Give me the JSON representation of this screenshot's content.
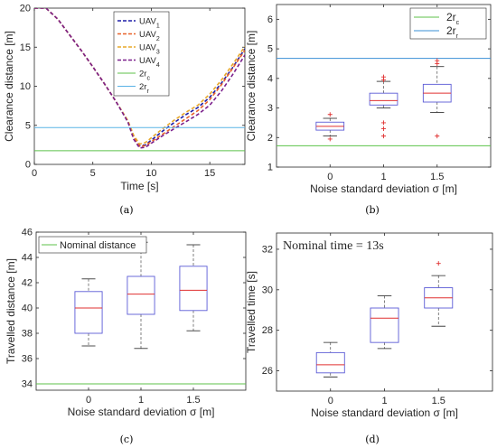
{
  "figure": {
    "panels": [
      {
        "caption": "(a)"
      },
      {
        "caption": "(b)"
      },
      {
        "caption": "(c)"
      },
      {
        "caption": "(d)"
      }
    ]
  },
  "chart_data": [
    {
      "panel": "(a)",
      "type": "line",
      "xlabel": "Time [s]",
      "ylabel": "Clearance distance [m]",
      "xlim": [
        0,
        18
      ],
      "ylim": [
        0,
        20
      ],
      "xticks": [
        0,
        5,
        10,
        15
      ],
      "yticks": [
        0,
        5,
        10,
        15,
        20
      ],
      "legend_position": "top-right",
      "series": [
        {
          "name": "UAV",
          "sub": "1",
          "style": "dashed",
          "color": "#1f1fa8",
          "x": [
            0,
            1,
            2,
            3,
            4,
            5,
            6,
            7,
            8,
            8.5,
            9,
            9.5,
            10,
            11,
            12,
            13,
            14,
            15,
            16,
            17,
            18
          ],
          "y": [
            20,
            20,
            18.6,
            16.6,
            14.6,
            12.5,
            10.3,
            8,
            5.5,
            3.5,
            2.4,
            2.5,
            3.1,
            4.3,
            5.4,
            6.4,
            7.3,
            8.6,
            10.4,
            12.5,
            14.8
          ]
        },
        {
          "name": "UAV",
          "sub": "2",
          "style": "dashed",
          "color": "#e8622a",
          "x": [
            0,
            1,
            2,
            3,
            4,
            5,
            6,
            7,
            8,
            8.5,
            9,
            9.5,
            10,
            11,
            12,
            13,
            14,
            15,
            16,
            17,
            18
          ],
          "y": [
            20,
            20,
            18.6,
            16.6,
            14.6,
            12.5,
            10.3,
            8,
            5.5,
            3.4,
            2.3,
            2.4,
            2.9,
            3.9,
            4.9,
            5.9,
            6.9,
            8.3,
            10.2,
            12.4,
            14.6
          ]
        },
        {
          "name": "UAV",
          "sub": "3",
          "style": "dashed",
          "color": "#e8a82a",
          "x": [
            0,
            1,
            2,
            3,
            4,
            5,
            6,
            7,
            8,
            8.5,
            9,
            9.5,
            10,
            11,
            12,
            13,
            14,
            15,
            16,
            17,
            18
          ],
          "y": [
            20,
            20,
            18.6,
            16.6,
            14.6,
            12.5,
            10.3,
            8,
            5.6,
            3.7,
            2.6,
            2.8,
            3.4,
            4.6,
            5.7,
            6.7,
            7.6,
            9.0,
            10.8,
            12.9,
            15.1
          ]
        },
        {
          "name": "UAV",
          "sub": "4",
          "style": "dashed",
          "color": "#7b1f8c",
          "x": [
            0,
            1,
            2,
            3,
            4,
            5,
            6,
            7,
            8,
            8.5,
            9,
            9.5,
            10,
            11,
            12,
            13,
            14,
            15,
            16,
            17,
            18
          ],
          "y": [
            20,
            20,
            18.6,
            16.6,
            14.6,
            12.5,
            10.3,
            8,
            5.4,
            3.2,
            2.1,
            2.2,
            2.7,
            3.7,
            4.6,
            5.5,
            6.4,
            7.6,
            9.4,
            11.6,
            14.0
          ]
        },
        {
          "name": "2r",
          "sub": "c",
          "style": "solid",
          "color": "#5cc24a",
          "x": [
            0,
            18
          ],
          "y": [
            1.75,
            1.75
          ]
        },
        {
          "name": "2r",
          "sub": "r",
          "style": "solid",
          "color": "#5ab3e6",
          "x": [
            0,
            18
          ],
          "y": [
            4.7,
            4.7
          ]
        }
      ]
    },
    {
      "panel": "(b)",
      "type": "box",
      "xlabel": "Noise standard deviation σ [m]",
      "ylabel": "Clearance distance [m]",
      "categories": [
        "0",
        "1",
        "1.5"
      ],
      "ylim": [
        1,
        6.5
      ],
      "yticks": [
        1,
        2,
        3,
        4,
        5,
        6
      ],
      "legend_position": "top-right",
      "boxes": [
        {
          "min": 2.05,
          "q1": 2.25,
          "median": 2.38,
          "q3": 2.52,
          "max": 2.65,
          "outliers": [
            1.95,
            2.78
          ]
        },
        {
          "min": 3.0,
          "q1": 3.1,
          "median": 3.25,
          "q3": 3.5,
          "max": 3.9,
          "outliers": [
            2.05,
            2.3,
            2.5,
            3.95,
            4.05
          ]
        },
        {
          "min": 2.85,
          "q1": 3.2,
          "median": 3.5,
          "q3": 3.8,
          "max": 4.4,
          "outliers": [
            2.05,
            4.5,
            4.6
          ]
        }
      ],
      "reference_lines": [
        {
          "name": "2r",
          "sub": "c",
          "y": 1.72,
          "color": "#5cc24a"
        },
        {
          "name": "2r",
          "sub": "r",
          "y": 4.68,
          "color": "#3a8fd6"
        }
      ]
    },
    {
      "panel": "(c)",
      "type": "box",
      "xlabel": "Noise standard deviation σ [m]",
      "ylabel": "Travelled distance [m]",
      "categories": [
        "0",
        "1",
        "1.5"
      ],
      "ylim": [
        33.5,
        46
      ],
      "yticks": [
        34,
        36,
        38,
        40,
        42,
        44,
        46
      ],
      "legend_position": "top-left",
      "boxes": [
        {
          "min": 37.0,
          "q1": 38.0,
          "median": 40.0,
          "q3": 41.3,
          "max": 42.3,
          "outliers": []
        },
        {
          "min": 36.8,
          "q1": 39.5,
          "median": 41.1,
          "q3": 42.5,
          "max": 45.2,
          "outliers": []
        },
        {
          "min": 38.2,
          "q1": 39.8,
          "median": 41.4,
          "q3": 43.3,
          "max": 45.0,
          "outliers": []
        }
      ],
      "reference_lines": [
        {
          "name": "Nominal distance",
          "y": 34.0,
          "color": "#5cc24a"
        }
      ]
    },
    {
      "panel": "(d)",
      "type": "box",
      "xlabel": "Noise standard deviation σ [m]",
      "ylabel": "Travelled time [s]",
      "categories": [
        "0",
        "1",
        "1.5"
      ],
      "ylim": [
        25,
        32.8
      ],
      "yticks": [
        26,
        28,
        30,
        32
      ],
      "annotation": "Nominal time = 13s",
      "boxes": [
        {
          "min": 25.7,
          "q1": 25.9,
          "median": 26.3,
          "q3": 26.9,
          "max": 27.4,
          "outliers": []
        },
        {
          "min": 27.1,
          "q1": 27.4,
          "median": 28.6,
          "q3": 29.1,
          "max": 29.7,
          "outliers": []
        },
        {
          "min": 28.2,
          "q1": 29.1,
          "median": 29.6,
          "q3": 30.1,
          "max": 30.7,
          "outliers": [
            31.3
          ]
        }
      ]
    }
  ]
}
